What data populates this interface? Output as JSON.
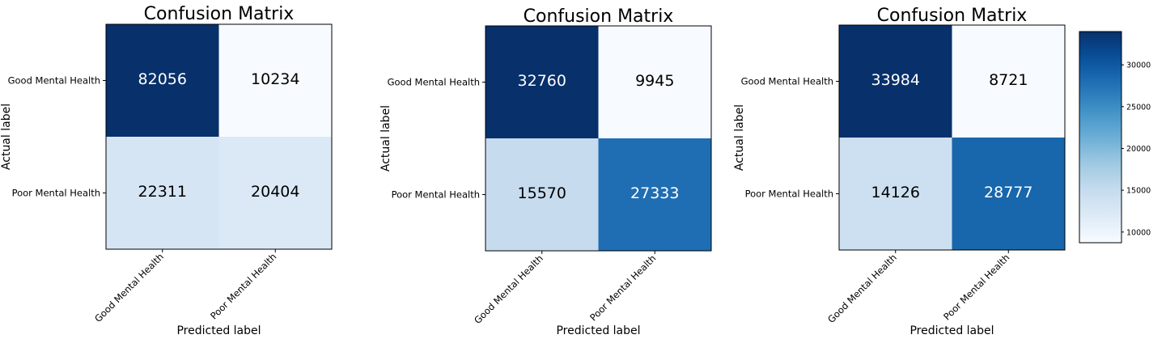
{
  "chart_data": [
    {
      "type": "heatmap",
      "title": "Confusion Matrix",
      "xlabel": "Predicted label",
      "ylabel": "Actual label",
      "x_categories": [
        "Good Mental Health",
        "Poor Mental Health"
      ],
      "y_categories": [
        "Good Mental Health",
        "Poor Mental Health"
      ],
      "values": [
        [
          82056,
          10234
        ],
        [
          22311,
          20404
        ]
      ],
      "colormap": "Blues"
    },
    {
      "type": "heatmap",
      "title": "Confusion Matrix",
      "xlabel": "Predicted label",
      "ylabel": "Actual label",
      "x_categories": [
        "Good Mental Health",
        "Poor Mental Health"
      ],
      "y_categories": [
        "Good Mental Health",
        "Poor Mental Health"
      ],
      "values": [
        [
          32760,
          9945
        ],
        [
          15570,
          27333
        ]
      ],
      "colormap": "Blues"
    },
    {
      "type": "heatmap",
      "title": "Confusion Matrix",
      "xlabel": "Predicted label",
      "ylabel": "Actual label",
      "x_categories": [
        "Good Mental Health",
        "Poor Mental Health"
      ],
      "y_categories": [
        "Good Mental Health",
        "Poor Mental Health"
      ],
      "values": [
        [
          33984,
          8721
        ],
        [
          14126,
          28777
        ]
      ],
      "colormap": "Blues",
      "colorbar": {
        "ticks": [
          10000,
          15000,
          20000,
          25000,
          30000
        ],
        "range": [
          8721,
          33984
        ]
      }
    }
  ]
}
